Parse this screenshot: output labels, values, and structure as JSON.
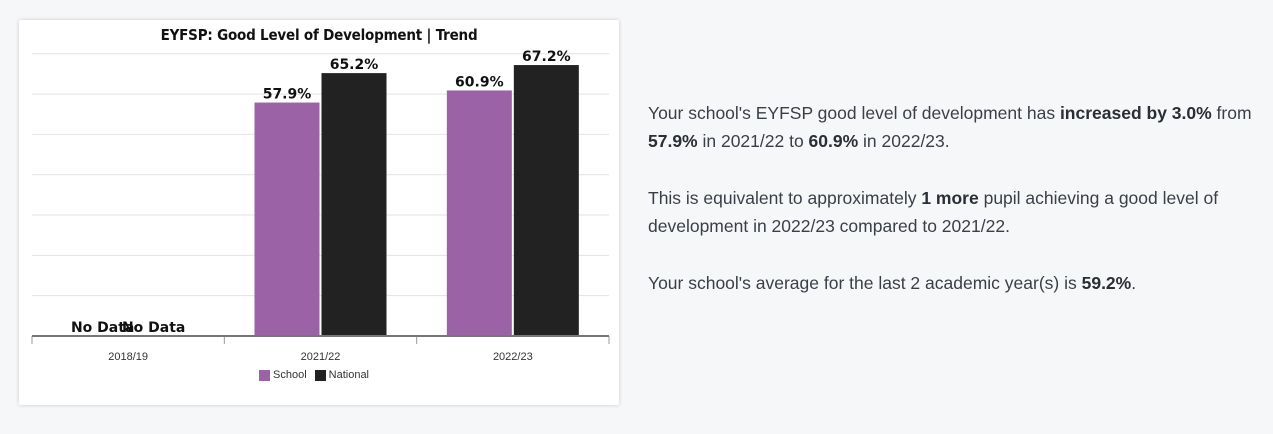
{
  "chart_data": {
    "type": "bar",
    "title": "EYFSP: Good Level of Development | Trend",
    "categories": [
      "2018/19",
      "2021/22",
      "2022/23"
    ],
    "series": [
      {
        "name": "School",
        "color": "#9b63a6",
        "values": [
          null,
          57.9,
          60.9
        ],
        "labels": [
          "No Data",
          "57.9%",
          "60.9%"
        ]
      },
      {
        "name": "National",
        "color": "#222222",
        "values": [
          null,
          65.2,
          67.2
        ],
        "labels": [
          "No Data",
          "65.2%",
          "67.2%"
        ]
      }
    ],
    "ylim": [
      0,
      100
    ],
    "grid": true,
    "legend": "bottom"
  },
  "summary": {
    "p1": {
      "t1": "Your school's EYFSP good level of development has ",
      "b1": "increased by 3.0%",
      "t2": " from ",
      "b2": "57.9%",
      "t3": " in 2021/22 to ",
      "b3": "60.9%",
      "t4": " in 2022/23."
    },
    "p2": {
      "t1": "This is equivalent to approximately ",
      "b1": "1 more",
      "t2": " pupil achieving a good level of development in 2022/23 compared to 2021/22."
    },
    "p3": {
      "t1": "Your school's average for the last 2 academic year(s) is ",
      "b1": "59.2%",
      "t2": "."
    }
  }
}
